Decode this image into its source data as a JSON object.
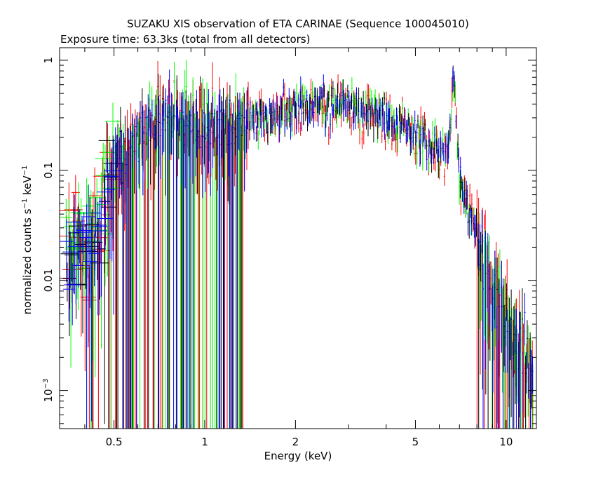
{
  "chart_data": {
    "type": "scatter",
    "title": "SUZAKU XIS observation of ETA CARINAE (Sequence 100045010)",
    "subtitle": "Exposure time: 63.3ks (total from all detectors)",
    "xlabel": "Energy (keV)",
    "ylabel": "normalized counts s-1 keV-1",
    "ylabel_parts": {
      "pre": "normalized counts s",
      "exp1": "−1",
      "mid": " keV",
      "exp2": "−1"
    },
    "x_scale": "log",
    "y_scale": "log",
    "xlim": [
      0.33,
      12.6
    ],
    "ylim": [
      0.00045,
      1.3
    ],
    "grid": false,
    "x_ticks": [
      {
        "value": 0.5,
        "label": "0.5"
      },
      {
        "value": 1,
        "label": "1"
      },
      {
        "value": 2,
        "label": "2"
      },
      {
        "value": 5,
        "label": "5"
      },
      {
        "value": 10,
        "label": "10"
      }
    ],
    "y_ticks": [
      {
        "value": 1,
        "label": "1"
      },
      {
        "value": 0.1,
        "label": "0.1"
      },
      {
        "value": 0.01,
        "label": "0.01"
      },
      {
        "value": 0.001,
        "label": "10",
        "exp": "−3"
      }
    ],
    "spectrum_model": {
      "x": [
        0.35,
        0.45,
        0.5,
        0.6,
        0.7,
        0.8,
        0.9,
        1.0,
        1.2,
        1.5,
        1.8,
        2.0,
        2.5,
        3.0,
        4.0,
        5.0,
        6.0,
        6.4,
        6.55,
        6.7,
        6.85,
        7.0,
        8.0,
        9.0,
        10.0,
        11.0,
        12.5
      ],
      "y": [
        0.015,
        0.03,
        0.12,
        0.2,
        0.3,
        0.32,
        0.3,
        0.25,
        0.27,
        0.3,
        0.35,
        0.38,
        0.4,
        0.4,
        0.3,
        0.22,
        0.16,
        0.15,
        0.35,
        0.75,
        0.25,
        0.08,
        0.025,
        0.009,
        0.005,
        0.003,
        0.0015
      ]
    },
    "series": [
      {
        "name": "",
        "color": "#ff0000",
        "points": 260,
        "scatter": 0.22
      },
      {
        "name": "",
        "color": "#00ff00",
        "points": 230,
        "scatter": 0.18
      },
      {
        "name": "",
        "color": "#000000",
        "points": 200,
        "scatter": 0.16
      },
      {
        "name": "",
        "color": "#0000ff",
        "points": 240,
        "scatter": 0.16
      }
    ]
  }
}
